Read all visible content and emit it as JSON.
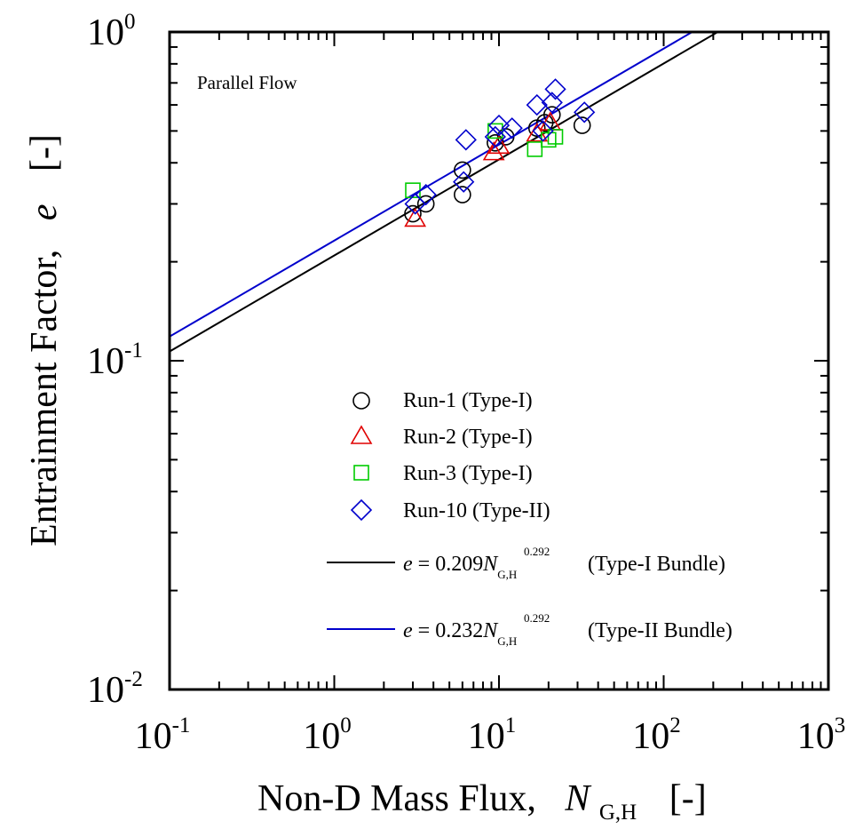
{
  "chart_data": {
    "type": "scatter",
    "title": "",
    "annotation": "Parallel Flow",
    "xlabel": {
      "prefix": "Non-D Mass Flux,",
      "symbol": "N",
      "subscript": "G,H",
      "unit": "[-]"
    },
    "ylabel": {
      "prefix": "Entrainment Factor,",
      "symbol": "e",
      "unit": "[-]"
    },
    "xscale": "log",
    "yscale": "log",
    "xlim": [
      0.1,
      1000
    ],
    "ylim": [
      0.01,
      1
    ],
    "x_ticks": [
      {
        "value": 0.1,
        "base": "10",
        "exp": "-1"
      },
      {
        "value": 1,
        "base": "10",
        "exp": "0"
      },
      {
        "value": 10,
        "base": "10",
        "exp": "1"
      },
      {
        "value": 100,
        "base": "10",
        "exp": "2"
      },
      {
        "value": 1000,
        "base": "10",
        "exp": "3"
      }
    ],
    "y_ticks": [
      {
        "value": 0.01,
        "base": "10",
        "exp": "-2"
      },
      {
        "value": 0.1,
        "base": "10",
        "exp": "-1"
      },
      {
        "value": 1,
        "base": "10",
        "exp": "0"
      }
    ],
    "grid": false,
    "legend_position": "lower-right",
    "series": [
      {
        "name": "Run-1 (Type-I)",
        "marker": "circle",
        "color": "#000000",
        "points": [
          [
            3.0,
            0.28
          ],
          [
            3.6,
            0.3
          ],
          [
            6.0,
            0.32
          ],
          [
            6.0,
            0.38
          ],
          [
            9.5,
            0.46
          ],
          [
            11.0,
            0.48
          ],
          [
            17.0,
            0.51
          ],
          [
            19.0,
            0.53
          ],
          [
            21.0,
            0.56
          ],
          [
            32.0,
            0.52
          ]
        ]
      },
      {
        "name": "Run-2 (Type-I)",
        "marker": "triangle",
        "color": "#e00000",
        "points": [
          [
            3.1,
            0.27
          ],
          [
            9.3,
            0.43
          ],
          [
            10.0,
            0.45
          ],
          [
            17.0,
            0.49
          ],
          [
            20.5,
            0.53
          ]
        ]
      },
      {
        "name": "Run-3 (Type-I)",
        "marker": "square",
        "color": "#00cc00",
        "points": [
          [
            3.0,
            0.33
          ],
          [
            9.5,
            0.5
          ],
          [
            16.5,
            0.44
          ],
          [
            20.0,
            0.47
          ],
          [
            22.0,
            0.48
          ]
        ]
      },
      {
        "name": "Run-10 (Type-II)",
        "marker": "diamond",
        "color": "#0000cc",
        "points": [
          [
            3.1,
            0.3
          ],
          [
            3.6,
            0.32
          ],
          [
            6.1,
            0.35
          ],
          [
            6.3,
            0.47
          ],
          [
            9.5,
            0.48
          ],
          [
            10.0,
            0.52
          ],
          [
            12.0,
            0.51
          ],
          [
            17.0,
            0.6
          ],
          [
            18.5,
            0.5
          ],
          [
            21.0,
            0.61
          ],
          [
            22.0,
            0.67
          ],
          [
            33.0,
            0.57
          ]
        ]
      }
    ],
    "fit_lines": [
      {
        "name": "Type-I Bundle",
        "coefficient": 0.209,
        "coefficient_label": "0.209",
        "exponent": 0.292,
        "exponent_label": "0.292",
        "color": "#000000"
      },
      {
        "name": "Type-II Bundle",
        "coefficient": 0.232,
        "coefficient_label": "0.232",
        "exponent": 0.292,
        "exponent_label": "0.292",
        "color": "#0000cc"
      }
    ],
    "legend_text": {
      "eq_lhs": "e",
      "eq_sign": "=",
      "var": "N",
      "var_sub": "G,H",
      "type1_label": "(Type-I Bundle)",
      "type2_label": "(Type-II Bundle)"
    }
  }
}
